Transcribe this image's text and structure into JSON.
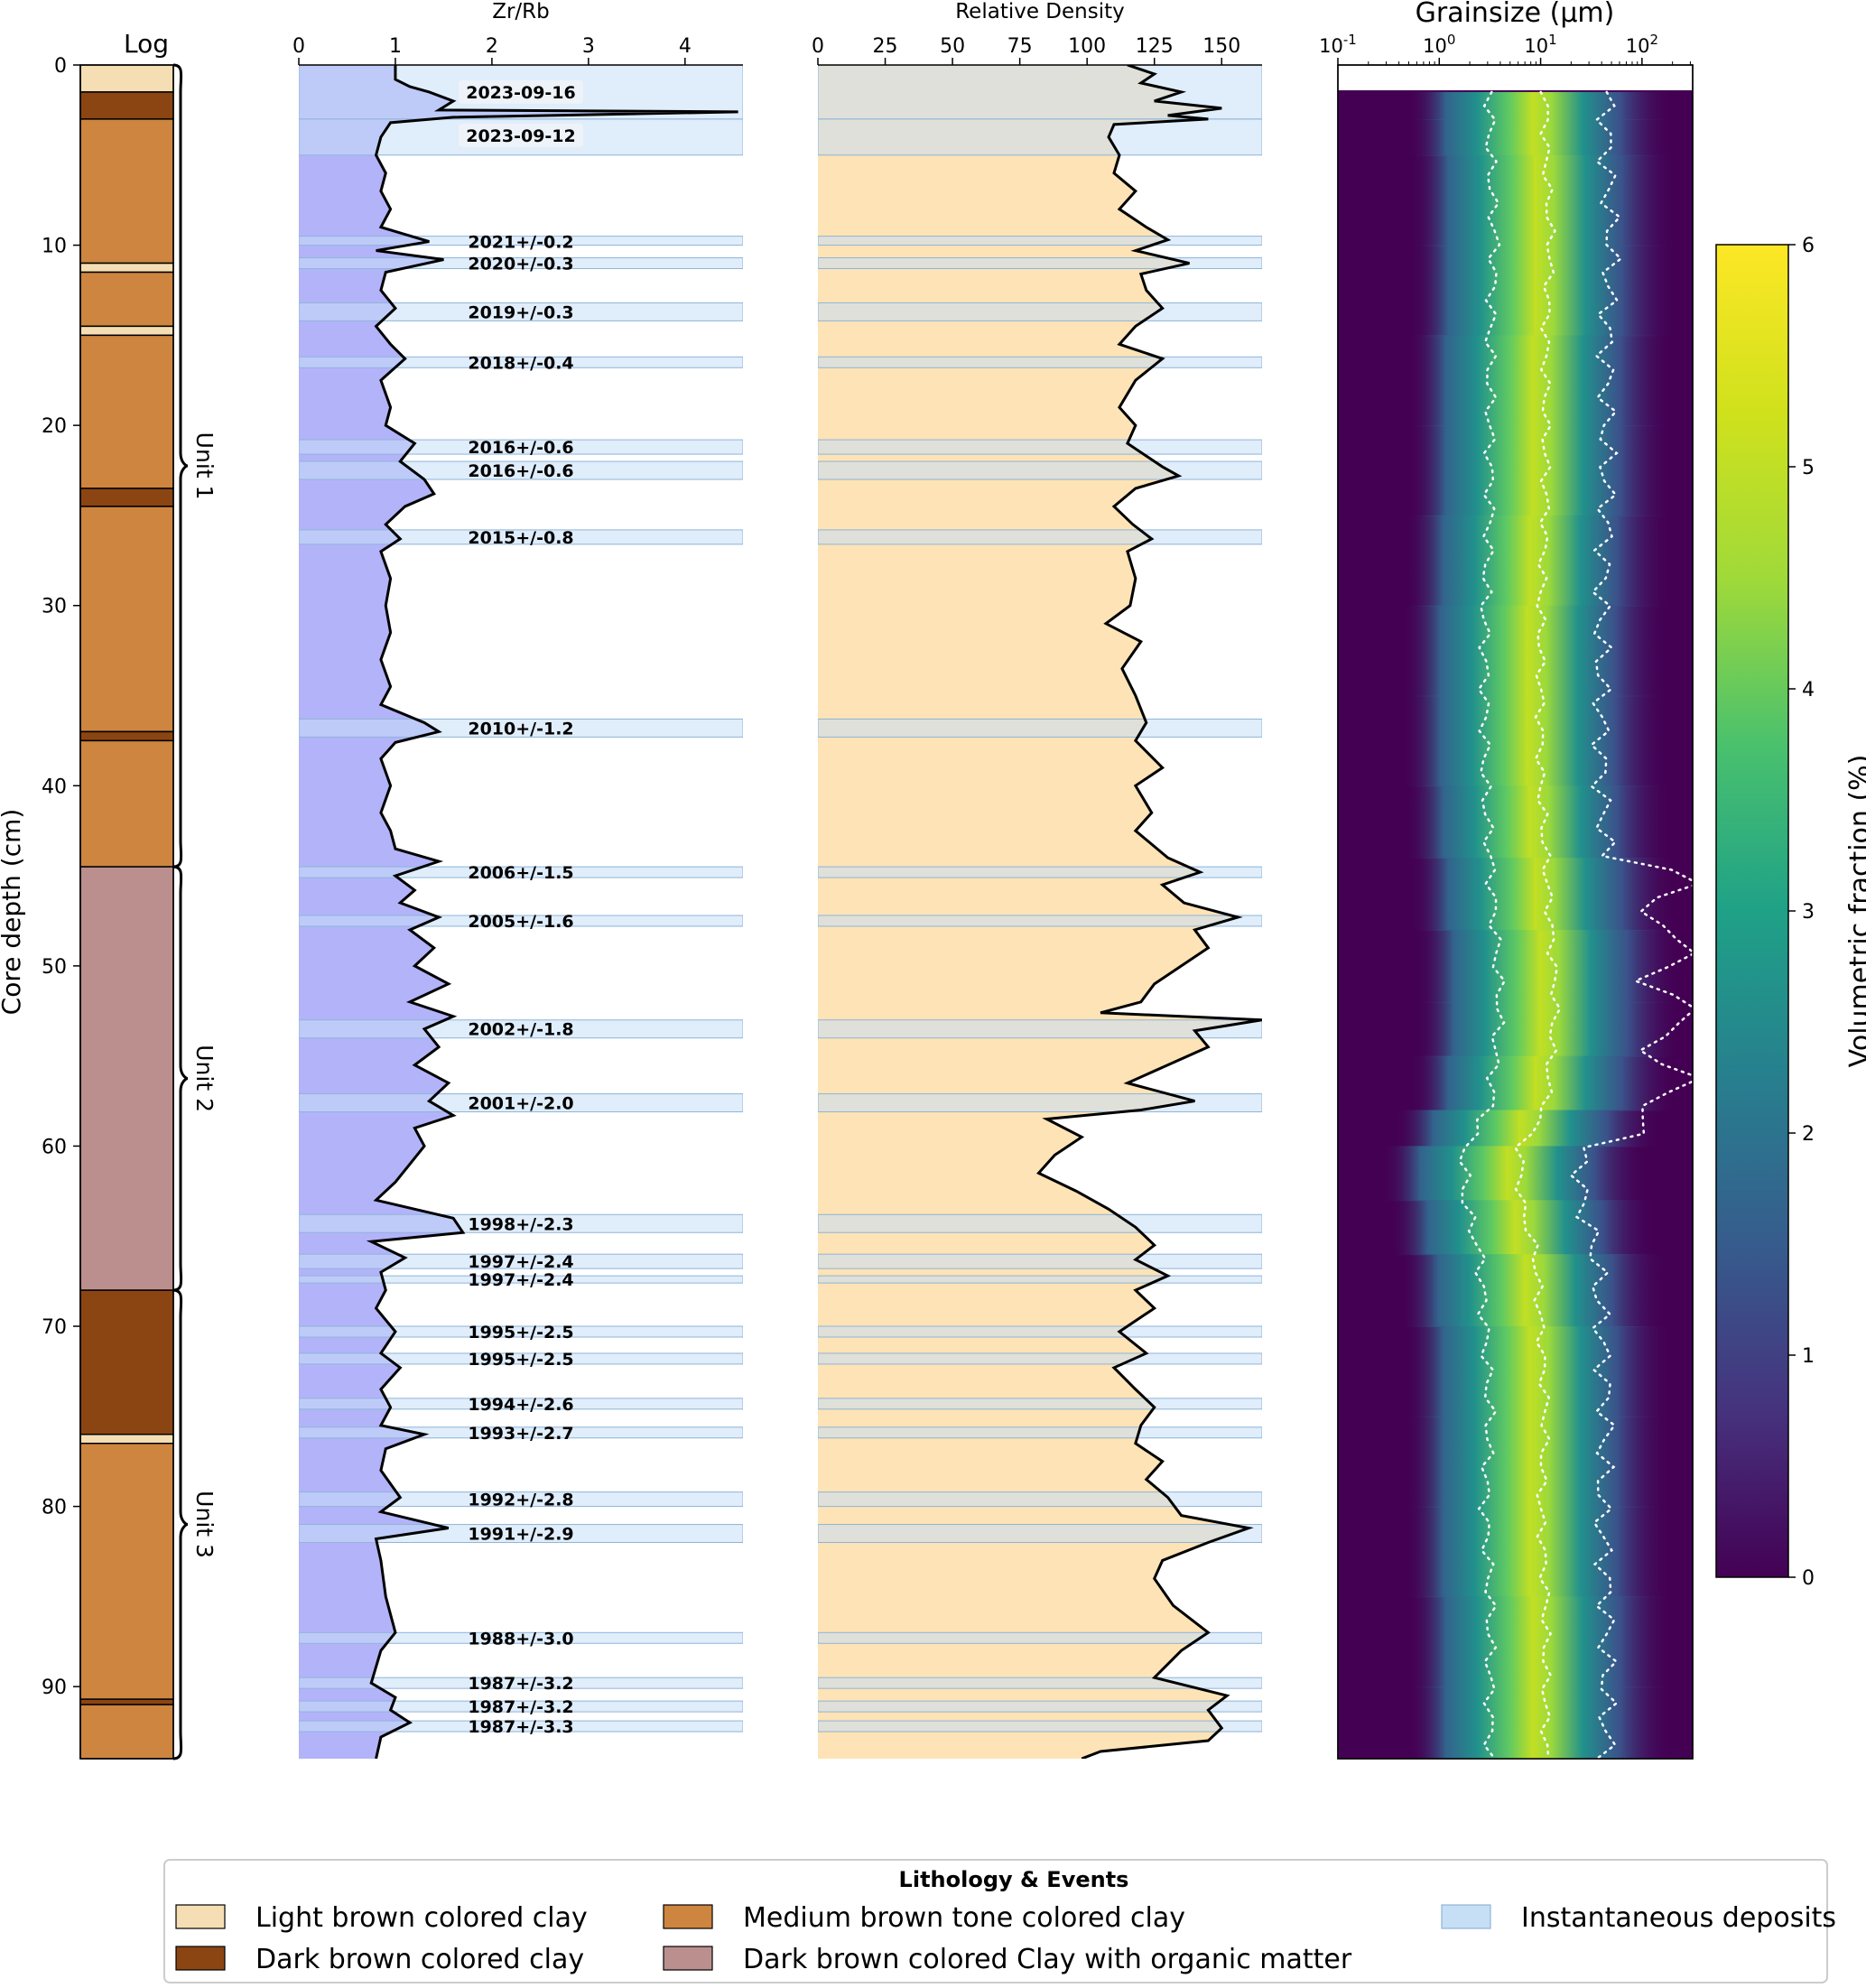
{
  "log": {
    "title": "Log",
    "ylabel": "Core depth (cm)",
    "yticks": [
      0,
      10,
      20,
      30,
      40,
      50,
      60,
      70,
      80,
      90
    ],
    "ylim": [
      0,
      94
    ],
    "layers": [
      {
        "top": 0,
        "bottom": 1.5,
        "type": "light"
      },
      {
        "top": 1.5,
        "bottom": 3,
        "type": "dark"
      },
      {
        "top": 3,
        "bottom": 11,
        "type": "medium"
      },
      {
        "top": 11,
        "bottom": 11.5,
        "type": "light"
      },
      {
        "top": 11.5,
        "bottom": 14.5,
        "type": "medium"
      },
      {
        "top": 14.5,
        "bottom": 15,
        "type": "light"
      },
      {
        "top": 15,
        "bottom": 23.5,
        "type": "medium"
      },
      {
        "top": 23.5,
        "bottom": 24.5,
        "type": "dark"
      },
      {
        "top": 24.5,
        "bottom": 37,
        "type": "medium"
      },
      {
        "top": 37,
        "bottom": 37.5,
        "type": "dark"
      },
      {
        "top": 37.5,
        "bottom": 44.5,
        "type": "medium"
      },
      {
        "top": 44.5,
        "bottom": 68,
        "type": "organic"
      },
      {
        "top": 68,
        "bottom": 76,
        "type": "dark"
      },
      {
        "top": 76,
        "bottom": 76.5,
        "type": "light"
      },
      {
        "top": 76.5,
        "bottom": 90.7,
        "type": "medium"
      },
      {
        "top": 90.7,
        "bottom": 91,
        "type": "dark"
      },
      {
        "top": 91,
        "bottom": 94,
        "type": "medium"
      }
    ],
    "units": [
      {
        "label": "Unit 1",
        "top": 0,
        "bottom": 44.5
      },
      {
        "label": "Unit 2",
        "top": 44.5,
        "bottom": 68
      },
      {
        "label": "Unit 3",
        "top": 68,
        "bottom": 94
      }
    ]
  },
  "chart_data": [
    {
      "type": "line",
      "title": "Zr/Rb",
      "xlim": [
        0,
        4.6
      ],
      "xticks": [
        0,
        1,
        2,
        3,
        4
      ],
      "ylim": [
        0,
        94
      ],
      "profile": [
        [
          0,
          1.0
        ],
        [
          0.8,
          1.0
        ],
        [
          1.2,
          1.15
        ],
        [
          1.5,
          1.35
        ],
        [
          2.0,
          1.6
        ],
        [
          2.5,
          1.45
        ],
        [
          2.6,
          4.55
        ],
        [
          2.9,
          1.6
        ],
        [
          3.2,
          0.95
        ],
        [
          4,
          0.85
        ],
        [
          5,
          0.8
        ],
        [
          6,
          0.9
        ],
        [
          7,
          0.85
        ],
        [
          8,
          0.95
        ],
        [
          9,
          0.85
        ],
        [
          9.8,
          1.35
        ],
        [
          10.3,
          0.8
        ],
        [
          10.8,
          1.5
        ],
        [
          11.5,
          0.9
        ],
        [
          12.5,
          0.85
        ],
        [
          13.5,
          1.0
        ],
        [
          14.5,
          0.8
        ],
        [
          15.5,
          0.95
        ],
        [
          16.3,
          1.1
        ],
        [
          17.5,
          0.85
        ],
        [
          19,
          0.95
        ],
        [
          20,
          0.9
        ],
        [
          21,
          1.2
        ],
        [
          22,
          1.05
        ],
        [
          23,
          1.3
        ],
        [
          23.8,
          1.4
        ],
        [
          24.5,
          1.1
        ],
        [
          25.5,
          0.9
        ],
        [
          26.3,
          1.05
        ],
        [
          27,
          0.85
        ],
        [
          28.5,
          0.95
        ],
        [
          30,
          0.9
        ],
        [
          31.5,
          0.95
        ],
        [
          33,
          0.85
        ],
        [
          34.5,
          0.95
        ],
        [
          35.5,
          0.85
        ],
        [
          36.5,
          1.3
        ],
        [
          37,
          1.45
        ],
        [
          37.6,
          1.0
        ],
        [
          38.5,
          0.85
        ],
        [
          40,
          0.95
        ],
        [
          41.5,
          0.85
        ],
        [
          42.5,
          0.95
        ],
        [
          43.5,
          1.0
        ],
        [
          44.2,
          1.45
        ],
        [
          45,
          1.0
        ],
        [
          45.8,
          1.2
        ],
        [
          46.5,
          1.05
        ],
        [
          47.3,
          1.45
        ],
        [
          48,
          1.15
        ],
        [
          49,
          1.4
        ],
        [
          50,
          1.2
        ],
        [
          51,
          1.55
        ],
        [
          52,
          1.15
        ],
        [
          52.8,
          1.6
        ],
        [
          53.5,
          1.3
        ],
        [
          54.5,
          1.45
        ],
        [
          55.5,
          1.2
        ],
        [
          56.5,
          1.55
        ],
        [
          57.5,
          1.35
        ],
        [
          58.3,
          1.6
        ],
        [
          59,
          1.2
        ],
        [
          60,
          1.3
        ],
        [
          61,
          1.15
        ],
        [
          62,
          1.0
        ],
        [
          63,
          0.8
        ],
        [
          64,
          1.6
        ],
        [
          64.8,
          1.7
        ],
        [
          65.3,
          0.75
        ],
        [
          66.2,
          1.1
        ],
        [
          67,
          0.85
        ],
        [
          68,
          0.9
        ],
        [
          69,
          0.8
        ],
        [
          70.3,
          1.0
        ],
        [
          71.5,
          0.85
        ],
        [
          72.3,
          1.05
        ],
        [
          73.5,
          0.85
        ],
        [
          74.5,
          0.95
        ],
        [
          75.5,
          0.85
        ],
        [
          76,
          1.3
        ],
        [
          76.8,
          0.9
        ],
        [
          78,
          0.85
        ],
        [
          79.5,
          1.05
        ],
        [
          80.3,
          0.85
        ],
        [
          81.2,
          1.55
        ],
        [
          81.8,
          0.8
        ],
        [
          83,
          0.85
        ],
        [
          85,
          0.9
        ],
        [
          87,
          1.0
        ],
        [
          88,
          0.85
        ],
        [
          89.8,
          0.75
        ],
        [
          90.6,
          1.0
        ],
        [
          91.3,
          0.95
        ],
        [
          92,
          1.15
        ],
        [
          92.8,
          0.85
        ],
        [
          94,
          0.8
        ]
      ]
    },
    {
      "type": "line",
      "title": "Relative Density",
      "xlim": [
        0,
        165
      ],
      "xticks": [
        0,
        25,
        50,
        75,
        100,
        125,
        150
      ],
      "ylim": [
        0,
        94
      ],
      "profile": [
        [
          0,
          115
        ],
        [
          0.5,
          125
        ],
        [
          1.0,
          120
        ],
        [
          1.5,
          135
        ],
        [
          2.0,
          125
        ],
        [
          2.4,
          150
        ],
        [
          2.8,
          130
        ],
        [
          3.0,
          145
        ],
        [
          3.3,
          110
        ],
        [
          4,
          108
        ],
        [
          5,
          112
        ],
        [
          6,
          110
        ],
        [
          7,
          118
        ],
        [
          8,
          112
        ],
        [
          9,
          122
        ],
        [
          9.7,
          130
        ],
        [
          10.3,
          118
        ],
        [
          11.0,
          138
        ],
        [
          11.6,
          120
        ],
        [
          12.5,
          122
        ],
        [
          13.5,
          128
        ],
        [
          14.5,
          118
        ],
        [
          15.5,
          112
        ],
        [
          16.3,
          128
        ],
        [
          17.5,
          118
        ],
        [
          19,
          112
        ],
        [
          20,
          118
        ],
        [
          21,
          115
        ],
        [
          22.3,
          128
        ],
        [
          22.8,
          134
        ],
        [
          23.5,
          118
        ],
        [
          24.5,
          110
        ],
        [
          25.5,
          117
        ],
        [
          26.3,
          124
        ],
        [
          27,
          115
        ],
        [
          28.5,
          118
        ],
        [
          30,
          116
        ],
        [
          31,
          107
        ],
        [
          32,
          120
        ],
        [
          33.5,
          113
        ],
        [
          35,
          118
        ],
        [
          36.5,
          122
        ],
        [
          37.5,
          118
        ],
        [
          39,
          128
        ],
        [
          40,
          118
        ],
        [
          41.5,
          124
        ],
        [
          42.5,
          118
        ],
        [
          44,
          130
        ],
        [
          44.8,
          142
        ],
        [
          45.5,
          128
        ],
        [
          46.5,
          136
        ],
        [
          47.3,
          156
        ],
        [
          48,
          140
        ],
        [
          49,
          145
        ],
        [
          50,
          135
        ],
        [
          51,
          125
        ],
        [
          52,
          120
        ],
        [
          52.6,
          105
        ],
        [
          53.0,
          165
        ],
        [
          53.6,
          140
        ],
        [
          54.5,
          145
        ],
        [
          55.5,
          130
        ],
        [
          56.5,
          115
        ],
        [
          57.5,
          140
        ],
        [
          58.0,
          120
        ],
        [
          58.5,
          85
        ],
        [
          59.5,
          98
        ],
        [
          60.5,
          88
        ],
        [
          61.5,
          82
        ],
        [
          62.5,
          96
        ],
        [
          63.5,
          108
        ],
        [
          64.5,
          118
        ],
        [
          65.5,
          125
        ],
        [
          66.3,
          118
        ],
        [
          67.2,
          130
        ],
        [
          68,
          118
        ],
        [
          69,
          125
        ],
        [
          70.3,
          112
        ],
        [
          71.5,
          122
        ],
        [
          72.3,
          110
        ],
        [
          73.5,
          118
        ],
        [
          74.5,
          125
        ],
        [
          75.5,
          120
        ],
        [
          76.5,
          118
        ],
        [
          77.5,
          128
        ],
        [
          78.5,
          122
        ],
        [
          79.5,
          130
        ],
        [
          80.5,
          135
        ],
        [
          81.2,
          160
        ],
        [
          82,
          145
        ],
        [
          83,
          128
        ],
        [
          84,
          125
        ],
        [
          85.5,
          132
        ],
        [
          87,
          145
        ],
        [
          88,
          135
        ],
        [
          89.5,
          125
        ],
        [
          90.5,
          152
        ],
        [
          91.3,
          145
        ],
        [
          92.3,
          150
        ],
        [
          93,
          145
        ],
        [
          93.6,
          105
        ],
        [
          94,
          98
        ]
      ]
    },
    {
      "type": "heatmap",
      "title": "Grainsize (μm)",
      "xscale": "log",
      "xlim_log10": [
        -1,
        2.5
      ],
      "xtick_exponents": [
        -1,
        0,
        1,
        2,
        3
      ],
      "ylim": [
        1.5,
        94
      ],
      "colorbar": {
        "label": "Volumetric fraction (%)",
        "range": [
          0,
          6
        ],
        "ticks": [
          0,
          1,
          2,
          3,
          4,
          5,
          6
        ]
      },
      "mode_profile": [
        [
          1.5,
          1.0
        ],
        [
          3,
          1.0
        ],
        [
          5,
          1.0
        ],
        [
          10,
          1.05
        ],
        [
          15,
          1.0
        ],
        [
          20,
          1.0
        ],
        [
          25,
          1.0
        ],
        [
          30,
          0.95
        ],
        [
          35,
          0.95
        ],
        [
          40,
          0.95
        ],
        [
          44,
          1.0
        ],
        [
          48,
          1.05
        ],
        [
          52,
          1.1
        ],
        [
          55,
          1.05
        ],
        [
          58,
          1.0
        ],
        [
          60,
          0.75
        ],
        [
          63,
          0.75
        ],
        [
          66,
          0.9
        ],
        [
          70,
          0.95
        ],
        [
          75,
          1.0
        ],
        [
          80,
          0.95
        ],
        [
          85,
          1.0
        ],
        [
          90,
          1.0
        ],
        [
          94,
          1.0
        ]
      ]
    }
  ],
  "events": [
    {
      "depth": 1.5,
      "label": "2023-09-16",
      "top": 0,
      "bottom": 3,
      "boxed": true
    },
    {
      "depth": 3.9,
      "label": "2023-09-12",
      "top": 3,
      "bottom": 5,
      "boxed": true
    },
    {
      "depth": 9.8,
      "label": "2021+/-0.2",
      "top": 9.5,
      "bottom": 10
    },
    {
      "depth": 11,
      "label": "2020+/-0.3",
      "top": 10.7,
      "bottom": 11.3
    },
    {
      "depth": 13.7,
      "label": "2019+/-0.3",
      "top": 13.2,
      "bottom": 14.2
    },
    {
      "depth": 16.5,
      "label": "2018+/-0.4",
      "top": 16.2,
      "bottom": 16.8
    },
    {
      "depth": 21.2,
      "label": "2016+/-0.6",
      "top": 20.8,
      "bottom": 21.6
    },
    {
      "depth": 22.5,
      "label": "2016+/-0.6",
      "top": 22.0,
      "bottom": 23.0
    },
    {
      "depth": 26.2,
      "label": "2015+/-0.8",
      "top": 25.8,
      "bottom": 26.6
    },
    {
      "depth": 36.8,
      "label": "2010+/-1.2",
      "top": 36.3,
      "bottom": 37.3
    },
    {
      "depth": 44.8,
      "label": "2006+/-1.5",
      "top": 44.5,
      "bottom": 45.1
    },
    {
      "depth": 47.5,
      "label": "2005+/-1.6",
      "top": 47.2,
      "bottom": 47.8
    },
    {
      "depth": 53.5,
      "label": "2002+/-1.8",
      "top": 53.0,
      "bottom": 54.0
    },
    {
      "depth": 57.6,
      "label": "2001+/-2.0",
      "top": 57.1,
      "bottom": 58.1
    },
    {
      "depth": 64.3,
      "label": "1998+/-2.3",
      "top": 63.8,
      "bottom": 64.8
    },
    {
      "depth": 66.4,
      "label": "1997+/-2.4",
      "top": 66.0,
      "bottom": 66.8
    },
    {
      "depth": 67.4,
      "label": "1997+/-2.4",
      "top": 67.2,
      "bottom": 67.6
    },
    {
      "depth": 70.3,
      "label": "1995+/-2.5",
      "top": 70.0,
      "bottom": 70.6
    },
    {
      "depth": 71.8,
      "label": "1995+/-2.5",
      "top": 71.5,
      "bottom": 72.1
    },
    {
      "depth": 74.3,
      "label": "1994+/-2.6",
      "top": 74.0,
      "bottom": 74.6
    },
    {
      "depth": 75.9,
      "label": "1993+/-2.7",
      "top": 75.6,
      "bottom": 76.2
    },
    {
      "depth": 79.6,
      "label": "1992+/-2.8",
      "top": 79.2,
      "bottom": 80.0
    },
    {
      "depth": 81.5,
      "label": "1991+/-2.9",
      "top": 81.0,
      "bottom": 82.0
    },
    {
      "depth": 87.3,
      "label": "1988+/-3.0",
      "top": 87.0,
      "bottom": 87.6
    },
    {
      "depth": 89.8,
      "label": "1987+/-3.2",
      "top": 89.5,
      "bottom": 90.1
    },
    {
      "depth": 91.1,
      "label": "1987+/-3.2",
      "top": 90.8,
      "bottom": 91.4
    },
    {
      "depth": 92.2,
      "label": "1987+/-3.3",
      "top": 91.9,
      "bottom": 92.5
    }
  ],
  "legend": {
    "title": "Lithology & Events",
    "items": [
      {
        "key": "light",
        "label": "Light brown colored clay",
        "color": "#f5deb3"
      },
      {
        "key": "dark",
        "label": "Dark brown colored clay",
        "color": "#8b4513"
      },
      {
        "key": "medium",
        "label": "Medium brown tone colored clay",
        "color": "#cd853f"
      },
      {
        "key": "organic",
        "label": "Dark brown colored Clay with organic matter",
        "color": "#bc8f8f"
      },
      {
        "key": "deposit",
        "label": "Instantaneous deposits",
        "color": "#c6dff5"
      }
    ]
  },
  "colors": {
    "light": "#f5deb3",
    "dark": "#8b4513",
    "medium": "#cd853f",
    "organic": "#bc8f8f",
    "zr_fill": "#b3b3fa",
    "density_fill": "#fde3b5",
    "deposit": "#c6dff5",
    "deposit_edge": "#8fb4d9"
  }
}
